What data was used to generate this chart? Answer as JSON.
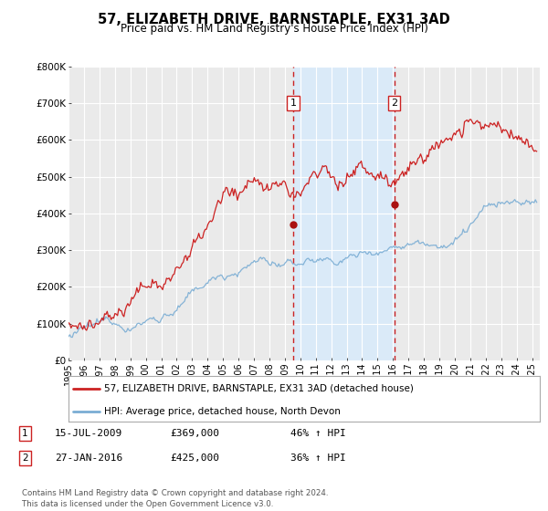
{
  "title": "57, ELIZABETH DRIVE, BARNSTAPLE, EX31 3AD",
  "subtitle": "Price paid vs. HM Land Registry's House Price Index (HPI)",
  "legend_entry1": "57, ELIZABETH DRIVE, BARNSTAPLE, EX31 3AD (detached house)",
  "legend_entry2": "HPI: Average price, detached house, North Devon",
  "transaction1_label": "1",
  "transaction1_date": "15-JUL-2009",
  "transaction1_price": "£369,000",
  "transaction1_hpi": "46% ↑ HPI",
  "transaction1_year": 2009.54,
  "transaction1_value": 369000,
  "transaction2_label": "2",
  "transaction2_date": "27-JAN-2016",
  "transaction2_price": "£425,000",
  "transaction2_hpi": "36% ↑ HPI",
  "transaction2_year": 2016.08,
  "transaction2_value": 425000,
  "hpi_color": "#7aadd4",
  "price_color": "#cc2222",
  "marker_color": "#aa1111",
  "vline_color": "#cc2222",
  "shade_color": "#daeaf8",
  "plot_bg_color": "#eaeaea",
  "grid_color": "#ffffff",
  "footer": "Contains HM Land Registry data © Crown copyright and database right 2024.\nThis data is licensed under the Open Government Licence v3.0.",
  "ylim": [
    0,
    800000
  ],
  "yticks": [
    0,
    100000,
    200000,
    300000,
    400000,
    500000,
    600000,
    700000,
    800000
  ],
  "ytick_labels": [
    "£0",
    "£100K",
    "£200K",
    "£300K",
    "£400K",
    "£500K",
    "£600K",
    "£700K",
    "£800K"
  ],
  "xlim_start": 1995.0,
  "xlim_end": 2025.5
}
